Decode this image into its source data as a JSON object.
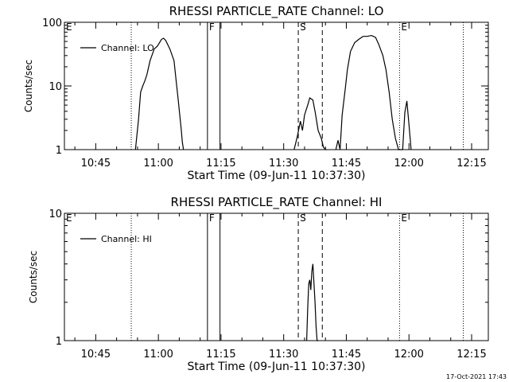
{
  "footer": {
    "timestamp": "17-Oct-2021 17:43"
  },
  "chart_data": [
    {
      "type": "line",
      "title": "RHESSI PARTICLE_RATE Channel: LO",
      "xlabel": "Start Time (09-Jun-11 10:37:30)",
      "ylabel": "Counts/sec",
      "yscale": "log",
      "xlim": [
        "10:37:30",
        "12:19:00"
      ],
      "ylim": [
        1,
        100
      ],
      "x_ticks": [
        "10:45",
        "11:00",
        "11:15",
        "11:30",
        "11:45",
        "12:00",
        "12:15"
      ],
      "y_ticks": [
        "1",
        "10",
        "100"
      ],
      "grid": false,
      "legend": "top-left",
      "series": [
        {
          "name": "Channel: LO",
          "x": [
            "10:54:30",
            "10:55:15",
            "10:55:45",
            "10:56:15",
            "10:56:45",
            "10:57:15",
            "10:58:00",
            "10:59:00",
            "10:59:45",
            "11:00:45",
            "11:01:15",
            "11:01:45",
            "11:02:45",
            "11:03:45",
            "11:04:15",
            "11:04:45",
            "11:05:30",
            "11:05:45",
            "11:06:00",
            "11:32:30",
            "11:33:15",
            "11:34:00",
            "11:34:30",
            "11:35:00",
            "11:35:45",
            "11:36:15",
            "11:37:00",
            "11:37:30",
            "11:37:45",
            "11:38:15",
            "11:39:00",
            "11:39:30",
            "11:40:00",
            "11:40:15",
            "11:42:30",
            "11:43:00",
            "11:43:30",
            "11:44:00",
            "11:44:45",
            "11:45:15",
            "11:46:00",
            "11:47:00",
            "11:48:00",
            "11:49:00",
            "11:50:00",
            "11:51:00",
            "11:52:00",
            "11:52:45",
            "11:53:45",
            "11:54:30",
            "11:55:15",
            "11:56:00",
            "11:56:45",
            "11:57:30",
            "11:58:30",
            "11:59:00",
            "11:59:30",
            "12:00:00",
            "12:00:30"
          ],
          "values": [
            1,
            3,
            8,
            10,
            12,
            15,
            25,
            38,
            42,
            54,
            56,
            52,
            38,
            25,
            12,
            6,
            2,
            1.3,
            1,
            1,
            1.6,
            2.8,
            2,
            3.5,
            5,
            6.5,
            6,
            4,
            3.2,
            2,
            1.5,
            1.1,
            1,
            1,
            1,
            1.4,
            1,
            3.5,
            9,
            18,
            35,
            48,
            54,
            60,
            60,
            62,
            58,
            45,
            30,
            18,
            8,
            3,
            1.5,
            1,
            1,
            3.8,
            5.8,
            2.5,
            1
          ]
        }
      ],
      "markers": [
        {
          "label": "E",
          "time": "10:37:30",
          "style": "dotted"
        },
        {
          "label": "",
          "time": "10:53:30",
          "style": "dotted"
        },
        {
          "label": "F",
          "time": "11:11:45",
          "style": "solid"
        },
        {
          "label": "",
          "time": "11:14:45",
          "style": "solid"
        },
        {
          "label": "S",
          "time": "11:33:30",
          "style": "dashed"
        },
        {
          "label": "",
          "time": "11:39:15",
          "style": "dashed"
        },
        {
          "label": "E",
          "time": "11:57:45",
          "style": "dotted"
        },
        {
          "label": "",
          "time": "12:13:00",
          "style": "dotted"
        }
      ]
    },
    {
      "type": "line",
      "title": "RHESSI PARTICLE_RATE Channel: HI",
      "xlabel": "Start Time (09-Jun-11 10:37:30)",
      "ylabel": "Counts/sec",
      "yscale": "log",
      "xlim": [
        "10:37:30",
        "12:19:00"
      ],
      "ylim": [
        1,
        10
      ],
      "x_ticks": [
        "10:45",
        "11:00",
        "11:15",
        "11:30",
        "11:45",
        "12:00",
        "12:15"
      ],
      "y_ticks": [
        "1",
        "10"
      ],
      "grid": false,
      "legend": "top-left",
      "series": [
        {
          "name": "Channel: HI",
          "x": [
            "11:35:30",
            "11:35:45",
            "11:36:00",
            "11:36:15",
            "11:36:30",
            "11:36:45",
            "11:37:00",
            "11:37:15",
            "11:37:30",
            "11:37:45",
            "11:38:00",
            "11:38:15"
          ],
          "values": [
            1,
            1.8,
            2.8,
            3.0,
            2.5,
            3.5,
            4.0,
            2.8,
            2.0,
            1.3,
            1.0,
            1.0
          ]
        }
      ],
      "markers": [
        {
          "label": "E",
          "time": "10:37:30",
          "style": "dotted"
        },
        {
          "label": "",
          "time": "10:53:30",
          "style": "dotted"
        },
        {
          "label": "F",
          "time": "11:11:45",
          "style": "solid"
        },
        {
          "label": "",
          "time": "11:14:45",
          "style": "solid"
        },
        {
          "label": "S",
          "time": "11:33:30",
          "style": "dashed"
        },
        {
          "label": "",
          "time": "11:39:15",
          "style": "dashed"
        },
        {
          "label": "E",
          "time": "11:57:45",
          "style": "dotted"
        },
        {
          "label": "",
          "time": "12:13:00",
          "style": "dotted"
        }
      ]
    }
  ]
}
